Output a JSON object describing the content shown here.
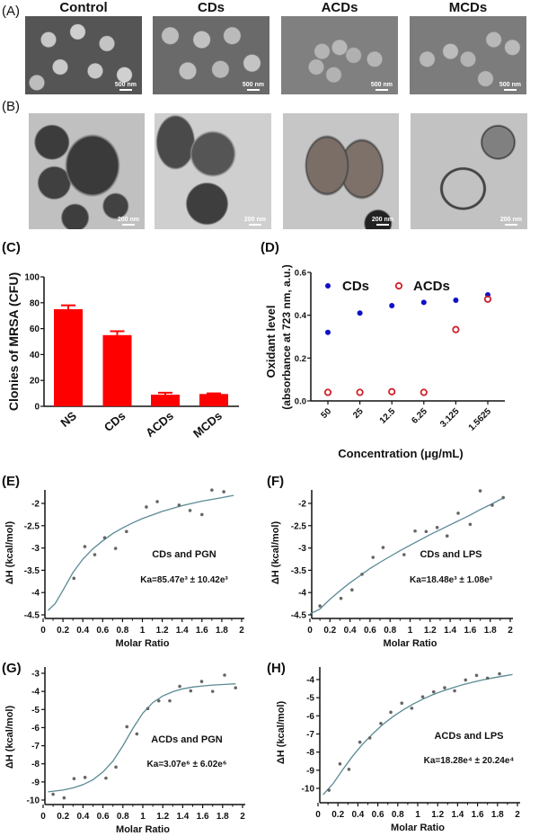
{
  "panels": {
    "A": {
      "label": "(A)",
      "columns": [
        "Control",
        "CDs",
        "ACDs",
        "MCDs"
      ],
      "scale_bars": [
        "500 nm",
        "500 nm",
        "500 nm",
        "500 nm"
      ],
      "type": "SEM micrographs"
    },
    "B": {
      "label": "(B)",
      "scale_bars": [
        "200 nm",
        "200 nm",
        "200 nm",
        "200 nm"
      ],
      "type": "TEM micrographs"
    }
  },
  "colors": {
    "bar": "#ff0000",
    "cds": "#1010c8",
    "acds": "#d0202a",
    "fit": "#5a8a94"
  },
  "chart_data": [
    {
      "id": "C",
      "panel_label": "(C)",
      "type": "bar",
      "categories": [
        "NS",
        "CDs",
        "ACDs",
        "MCDs"
      ],
      "values": [
        75,
        55,
        9,
        9.5
      ],
      "error_upper": [
        78,
        58,
        10.5,
        10
      ],
      "ylabel": "Clonies of MRSA (CFU)",
      "xlabel": "",
      "ylim": [
        0,
        100
      ],
      "yticks": [
        0,
        20,
        40,
        60,
        80,
        100
      ]
    },
    {
      "id": "D",
      "panel_label": "(D)",
      "type": "scatter",
      "categories": [
        "50",
        "25",
        "12.5",
        "6.25",
        "3.125",
        "1.5625"
      ],
      "series": [
        {
          "name": "CDs",
          "marker": "filled-circle",
          "values": [
            0.32,
            0.41,
            0.445,
            0.46,
            0.47,
            0.495
          ]
        },
        {
          "name": "ACDs",
          "marker": "open-circle",
          "values": [
            0.04,
            0.04,
            0.043,
            0.04,
            0.333,
            0.475
          ]
        }
      ],
      "ylabel_line1": "Oxidant level",
      "ylabel_line2": "(absorbance at 723 nm, a.u.)",
      "xlabel": "Concentration (μg/mL)",
      "ylim": [
        0,
        0.6
      ],
      "yticks": [
        "0.0",
        "0.2",
        "0.4",
        "0.6"
      ],
      "legend": "top"
    },
    {
      "id": "E",
      "panel_label": "(E)",
      "type": "scatter",
      "annotation": "CDs and PGN",
      "ka_text": "Ka=85.47e³ ± 10.42e³",
      "xlabel": "Molar Ratio",
      "ylabel": "ΔH (kcal/mol)",
      "xlim": [
        0,
        2
      ],
      "xticks": [
        "0",
        "0.2",
        "0.4",
        "0.6",
        "0.8",
        "1",
        "1.2",
        "1.4",
        "1.6",
        "1.8",
        "2"
      ],
      "ylim": [
        -4.6,
        -1.6
      ],
      "yticks": [
        "-2",
        "-2.5",
        "-3",
        "-3.5",
        "-4",
        "-4.5"
      ],
      "points": [
        [
          0.31,
          -3.68
        ],
        [
          0.42,
          -2.97
        ],
        [
          0.52,
          -3.15
        ],
        [
          0.62,
          -2.77
        ],
        [
          0.73,
          -3.01
        ],
        [
          0.84,
          -2.63
        ],
        [
          1.04,
          -2.08
        ],
        [
          1.15,
          -1.96
        ],
        [
          1.37,
          -2.04
        ],
        [
          1.48,
          -2.16
        ],
        [
          1.6,
          -2.25
        ],
        [
          1.7,
          -1.7
        ],
        [
          1.82,
          -1.74
        ]
      ],
      "fit": [
        [
          0.05,
          -4.4
        ],
        [
          0.12,
          -4.25
        ],
        [
          0.2,
          -3.95
        ],
        [
          0.3,
          -3.55
        ],
        [
          0.4,
          -3.25
        ],
        [
          0.5,
          -3.02
        ],
        [
          0.6,
          -2.84
        ],
        [
          0.7,
          -2.68
        ],
        [
          0.8,
          -2.55
        ],
        [
          0.9,
          -2.44
        ],
        [
          1.0,
          -2.34
        ],
        [
          1.2,
          -2.18
        ],
        [
          1.4,
          -2.05
        ],
        [
          1.6,
          -1.95
        ],
        [
          1.8,
          -1.87
        ],
        [
          1.92,
          -1.82
        ]
      ]
    },
    {
      "id": "F",
      "panel_label": "(F)",
      "type": "scatter",
      "annotation": "CDs and LPS",
      "ka_text": "Ka=18.48e³ ± 1.08e³",
      "xlabel": "Molar Ratio",
      "ylabel": "ΔH (kcal/mol)",
      "xlim": [
        0,
        2
      ],
      "xticks": [
        "0",
        "0.2",
        "0.4",
        "0.6",
        "0.8",
        "1",
        "1.2",
        "1.4",
        "1.6",
        "1.8",
        "2"
      ],
      "ylim": [
        -4.6,
        -1.6
      ],
      "yticks": [
        "-2",
        "-2.5",
        "-3",
        "-3.5",
        "-4",
        "-4.5"
      ],
      "points": [
        [
          0.1,
          -4.3
        ],
        [
          0.31,
          -4.13
        ],
        [
          0.42,
          -3.94
        ],
        [
          0.52,
          -3.59
        ],
        [
          0.63,
          -3.21
        ],
        [
          0.73,
          -2.99
        ],
        [
          0.94,
          -3.15
        ],
        [
          1.05,
          -2.62
        ],
        [
          1.16,
          -2.63
        ],
        [
          1.27,
          -2.54
        ],
        [
          1.37,
          -2.73
        ],
        [
          1.48,
          -2.22
        ],
        [
          1.6,
          -2.47
        ],
        [
          1.7,
          -1.72
        ],
        [
          1.82,
          -2.04
        ],
        [
          1.93,
          -1.87
        ]
      ],
      "fit": [
        [
          0.0,
          -4.48
        ],
        [
          0.1,
          -4.37
        ],
        [
          0.2,
          -4.15
        ],
        [
          0.3,
          -3.96
        ],
        [
          0.4,
          -3.78
        ],
        [
          0.5,
          -3.62
        ],
        [
          0.6,
          -3.46
        ],
        [
          0.7,
          -3.32
        ],
        [
          0.8,
          -3.19
        ],
        [
          0.9,
          -3.06
        ],
        [
          1.0,
          -2.94
        ],
        [
          1.1,
          -2.82
        ],
        [
          1.2,
          -2.7
        ],
        [
          1.3,
          -2.59
        ],
        [
          1.4,
          -2.48
        ],
        [
          1.5,
          -2.37
        ],
        [
          1.6,
          -2.26
        ],
        [
          1.7,
          -2.14
        ],
        [
          1.8,
          -2.03
        ],
        [
          1.93,
          -1.88
        ]
      ]
    },
    {
      "id": "G",
      "panel_label": "(G)",
      "type": "scatter",
      "annotation": "ACDs and PGN",
      "ka_text": "Ka=3.07e⁶ ± 6.02e⁶",
      "xlabel": "Molar Ratio",
      "ylabel": "ΔH (kcal/mol)",
      "xlim": [
        0,
        2
      ],
      "xticks": [
        "0",
        "0.2",
        "0.4",
        "0.6",
        "0.8",
        "1",
        "1.2",
        "1.4",
        "1.6",
        "1.8",
        "2"
      ],
      "ylim": [
        -10.2,
        -2.7
      ],
      "yticks": [
        "-3",
        "-4",
        "-5",
        "-6",
        "-7",
        "-8",
        "-9",
        "-10"
      ],
      "points": [
        [
          0.1,
          -9.68
        ],
        [
          0.21,
          -9.88
        ],
        [
          0.31,
          -8.82
        ],
        [
          0.42,
          -8.75
        ],
        [
          0.63,
          -8.79
        ],
        [
          0.73,
          -8.18
        ],
        [
          0.84,
          -5.95
        ],
        [
          0.94,
          -6.35
        ],
        [
          1.05,
          -4.95
        ],
        [
          1.16,
          -4.52
        ],
        [
          1.27,
          -4.52
        ],
        [
          1.37,
          -3.72
        ],
        [
          1.48,
          -3.97
        ],
        [
          1.59,
          -3.45
        ],
        [
          1.7,
          -4.0
        ],
        [
          1.82,
          -3.1
        ],
        [
          1.93,
          -3.8
        ]
      ],
      "fit": [
        [
          0.05,
          -9.55
        ],
        [
          0.2,
          -9.45
        ],
        [
          0.3,
          -9.33
        ],
        [
          0.4,
          -9.15
        ],
        [
          0.5,
          -8.88
        ],
        [
          0.6,
          -8.45
        ],
        [
          0.7,
          -7.85
        ],
        [
          0.8,
          -7.0
        ],
        [
          0.9,
          -6.05
        ],
        [
          1.0,
          -5.2
        ],
        [
          1.1,
          -4.62
        ],
        [
          1.2,
          -4.25
        ],
        [
          1.3,
          -4.02
        ],
        [
          1.4,
          -3.86
        ],
        [
          1.5,
          -3.76
        ],
        [
          1.6,
          -3.7
        ],
        [
          1.7,
          -3.65
        ],
        [
          1.8,
          -3.62
        ],
        [
          1.93,
          -3.58
        ]
      ]
    },
    {
      "id": "H",
      "panel_label": "(H)",
      "type": "scatter",
      "annotation": "ACDs and LPS",
      "ka_text": "Ka=18.28e⁴ ± 20.24e⁴",
      "xlabel": "Molar Ratio",
      "ylabel": "ΔH (kcal/mol)",
      "xlim": [
        0,
        2
      ],
      "xticks": [
        "0",
        "0.2",
        "0.4",
        "0.6",
        "0.8",
        "1",
        "1.2",
        "1.4",
        "1.6",
        "1.8",
        "2"
      ],
      "ylim": [
        -10.9,
        -3.4
      ],
      "yticks": [
        "-4",
        "-5",
        "-6",
        "-7",
        "-8",
        "-9",
        "-10"
      ],
      "points": [
        [
          0.11,
          -10.1
        ],
        [
          0.22,
          -8.65
        ],
        [
          0.31,
          -8.95
        ],
        [
          0.42,
          -7.45
        ],
        [
          0.52,
          -7.22
        ],
        [
          0.63,
          -6.42
        ],
        [
          0.73,
          -5.8
        ],
        [
          0.84,
          -5.3
        ],
        [
          0.94,
          -5.58
        ],
        [
          1.05,
          -4.95
        ],
        [
          1.16,
          -4.68
        ],
        [
          1.27,
          -4.45
        ],
        [
          1.37,
          -4.62
        ],
        [
          1.48,
          -4.02
        ],
        [
          1.59,
          -3.77
        ],
        [
          1.7,
          -3.92
        ],
        [
          1.82,
          -3.68
        ]
      ],
      "fit": [
        [
          0.05,
          -10.35
        ],
        [
          0.15,
          -9.75
        ],
        [
          0.25,
          -8.95
        ],
        [
          0.35,
          -8.2
        ],
        [
          0.45,
          -7.55
        ],
        [
          0.55,
          -6.98
        ],
        [
          0.65,
          -6.48
        ],
        [
          0.75,
          -6.05
        ],
        [
          0.85,
          -5.68
        ],
        [
          0.95,
          -5.36
        ],
        [
          1.05,
          -5.08
        ],
        [
          1.15,
          -4.84
        ],
        [
          1.25,
          -4.63
        ],
        [
          1.35,
          -4.45
        ],
        [
          1.45,
          -4.29
        ],
        [
          1.55,
          -4.15
        ],
        [
          1.65,
          -4.02
        ],
        [
          1.75,
          -3.91
        ],
        [
          1.85,
          -3.81
        ],
        [
          1.95,
          -3.72
        ]
      ]
    }
  ]
}
